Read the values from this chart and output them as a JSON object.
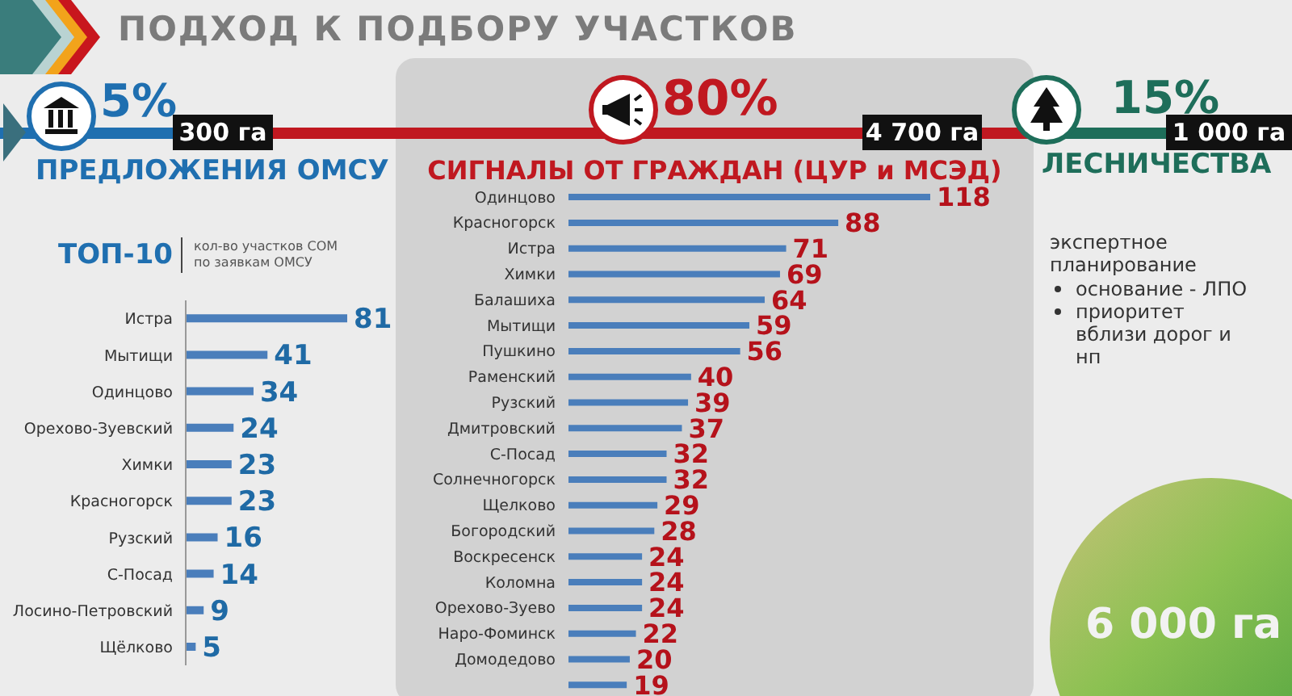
{
  "chart_data": [
    {
      "type": "other",
      "title": "ПОДХОД К ПОДБОРУ УЧАСТКОВ"
    },
    {
      "type": "bar",
      "orientation": "horizontal",
      "title": "ПРЕДЛОЖЕНИЯ ОМСУ",
      "subtitle": "ТОП-10",
      "annotations": [
        "5%",
        "300 га",
        "кол-во участков СОМ по заявкам ОМСУ"
      ],
      "categories": [
        "Истра",
        "Мытищи",
        "Одинцово",
        "Орехово-Зуевский",
        "Химки",
        "Красногорск",
        "Рузский",
        "С-Посад",
        "Лосино-Петровский",
        "Щёлково"
      ],
      "values": [
        81,
        41,
        34,
        24,
        23,
        23,
        16,
        14,
        9,
        5
      ],
      "color": "#4a7ebb",
      "data_labels": true
    },
    {
      "type": "bar",
      "orientation": "horizontal",
      "title": "СИГНАЛЫ ОТ ГРАЖДАН (ЦУР и МСЭД)",
      "annotations": [
        "80%",
        "4 700 га"
      ],
      "categories": [
        "Одинцово",
        "Красногорск",
        "Истра",
        "Химки",
        "Балашиха",
        "Мытищи",
        "Пушкино",
        "Раменский",
        "Рузский",
        "Дмитровский",
        "С-Посад",
        "Солнечногорск",
        "Щелково",
        "Богородский",
        "Воскресенск",
        "Коломна",
        "Орехово-Зуево",
        "Наро-Фоминск",
        "Домодедово",
        null
      ],
      "values": [
        118,
        88,
        71,
        69,
        64,
        59,
        56,
        40,
        39,
        37,
        32,
        32,
        29,
        28,
        24,
        24,
        24,
        22,
        20,
        19
      ],
      "color": "#4a7ebb",
      "data_labels": true
    },
    {
      "type": "other",
      "title": "ЛЕСНИЧЕСТВА",
      "annotations": [
        "15%",
        "1 000 га",
        "экспертное планирование",
        "основание - ЛПО",
        "приоритет вблизи дорог и нп",
        "6 000 га"
      ]
    }
  ]
}
